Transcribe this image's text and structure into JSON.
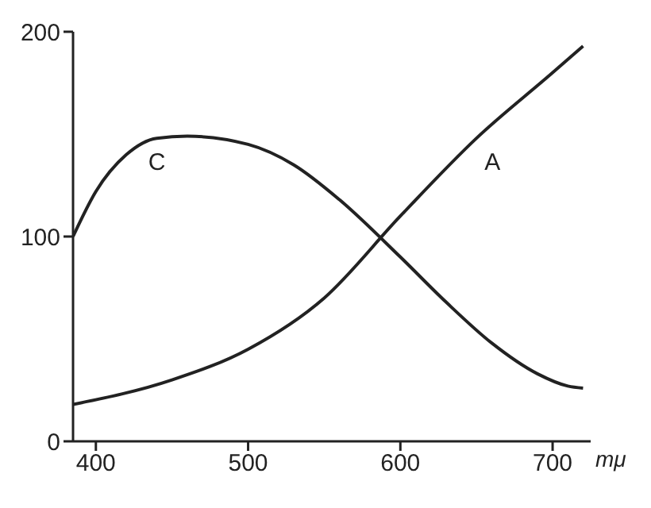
{
  "chart_data": {
    "type": "line",
    "xlabel": "mμ",
    "xlim": [
      385,
      725
    ],
    "xticks": [
      400,
      500,
      600,
      700
    ],
    "ylim": [
      0,
      200
    ],
    "yticks": [
      0,
      100,
      200
    ],
    "grid": false,
    "legend": false,
    "marker": "none",
    "line_style": "solid",
    "series": [
      {
        "name": "C",
        "color": "#222222",
        "x": [
          385,
          400,
          420,
          440,
          460,
          500,
          530,
          560,
          600,
          630,
          660,
          690,
          710,
          720
        ],
        "values": [
          100,
          122,
          140,
          148,
          149,
          145,
          135,
          118,
          90,
          68,
          48,
          33,
          27,
          26
        ]
      },
      {
        "name": "A",
        "color": "#222222",
        "x": [
          385,
          450,
          500,
          550,
          600,
          650,
          700,
          720
        ],
        "values": [
          18,
          30,
          45,
          70,
          110,
          148,
          180,
          193
        ]
      }
    ]
  }
}
